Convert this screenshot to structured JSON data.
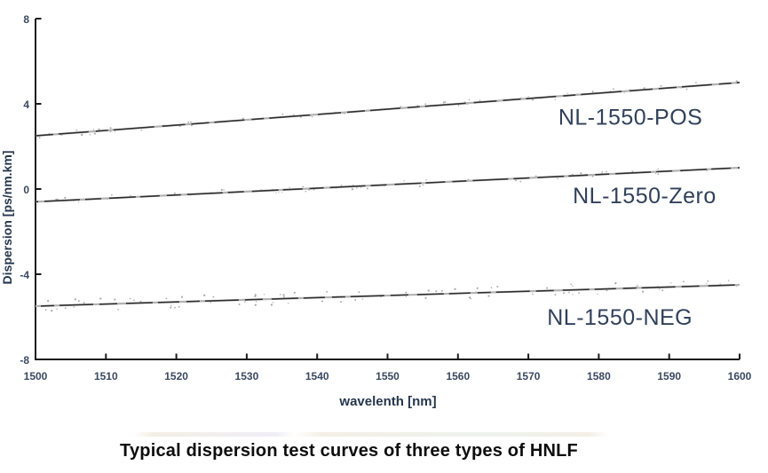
{
  "figure": {
    "caption": "Typical dispersion test curves of three types of HNLF"
  },
  "chart_data": {
    "type": "line",
    "title": "",
    "xlabel": "wavelenth [nm]",
    "ylabel": "Dispersion [ps/nm.km]",
    "xlim": [
      1500,
      1600
    ],
    "ylim": [
      -8,
      8
    ],
    "xticks": [
      1500,
      1510,
      1520,
      1530,
      1540,
      1550,
      1560,
      1570,
      1580,
      1590,
      1600
    ],
    "yticks": [
      8,
      4,
      0,
      -4,
      -8
    ],
    "grid": false,
    "legend_position": "inline-annotations",
    "x": [
      1500,
      1600
    ],
    "series": [
      {
        "name": "NL-1550-POS",
        "label": "NL-1550-POS",
        "values": [
          2.5,
          5.0
        ],
        "label_at": {
          "x": 1584.5,
          "y": 3.4
        },
        "noise_spread": 0.3
      },
      {
        "name": "NL-1550-Zero",
        "label": "NL-1550-Zero",
        "values": [
          -0.6,
          1.0
        ],
        "label_at": {
          "x": 1586.5,
          "y": -0.3
        },
        "noise_spread": 0.3
      },
      {
        "name": "NL-1550-NEG",
        "label": "NL-1550-NEG",
        "values": [
          -5.5,
          -4.5
        ],
        "label_at": {
          "x": 1583.0,
          "y": -6.0
        },
        "noise_spread": 0.55
      }
    ],
    "colors": {
      "background": "#ffffff",
      "axis": "#1a1a1a",
      "trace_light": "#b3b3b3",
      "trace_dark": "#2d2d2d",
      "noise": "#9c9c9c",
      "tick_label": "#3a4960",
      "axis_label": "#26374d",
      "series_label": "#31415a",
      "caption": "#0d0d0d"
    }
  }
}
